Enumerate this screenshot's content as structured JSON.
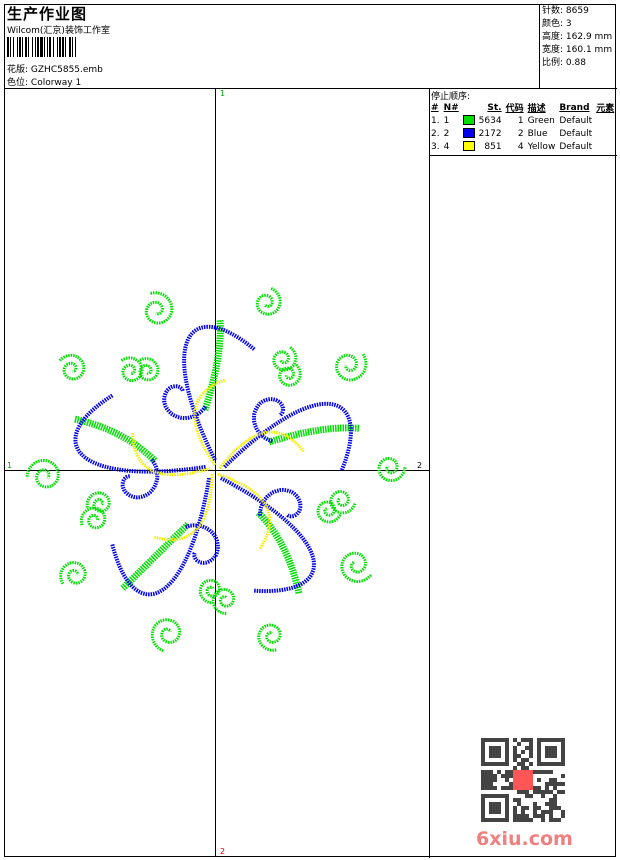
{
  "header": {
    "title": "生产作业图",
    "subtitle": "Wilcom(汇京)装饰工作室",
    "design_label": "花版:",
    "design_value": "GZHC5855.emb",
    "colorway_label": "色位:",
    "colorway_value": "Colorway 1"
  },
  "info": {
    "stitches_label": "针数:",
    "stitches": "8659",
    "colors_label": "颜色:",
    "colors": "3",
    "height_label": "高度:",
    "height": "162.9 mm",
    "width_label": "宽度:",
    "width": "160.1 mm",
    "scale_label": "比例:",
    "scale": "0.88"
  },
  "stop_sequence": {
    "title": "停止顺序:",
    "headers": [
      "#",
      "N#",
      "St.",
      "代码",
      "描述",
      "Brand",
      "元素"
    ],
    "rows": [
      {
        "idx": "1.",
        "n": "1",
        "color": "#00dd00",
        "st": "5634",
        "code": "1",
        "desc": "Green",
        "brand": "Default"
      },
      {
        "idx": "2.",
        "n": "2",
        "color": "#0000ee",
        "st": "2172",
        "code": "2",
        "desc": "Blue",
        "brand": "Default"
      },
      {
        "idx": "3.",
        "n": "4",
        "color": "#ffff00",
        "st": "851",
        "code": "4",
        "desc": "Yellow",
        "brand": "Default"
      }
    ]
  },
  "axes": {
    "top": "1",
    "bottom": "2",
    "left": "1",
    "right": "2"
  },
  "watermark": "6xiu.com"
}
